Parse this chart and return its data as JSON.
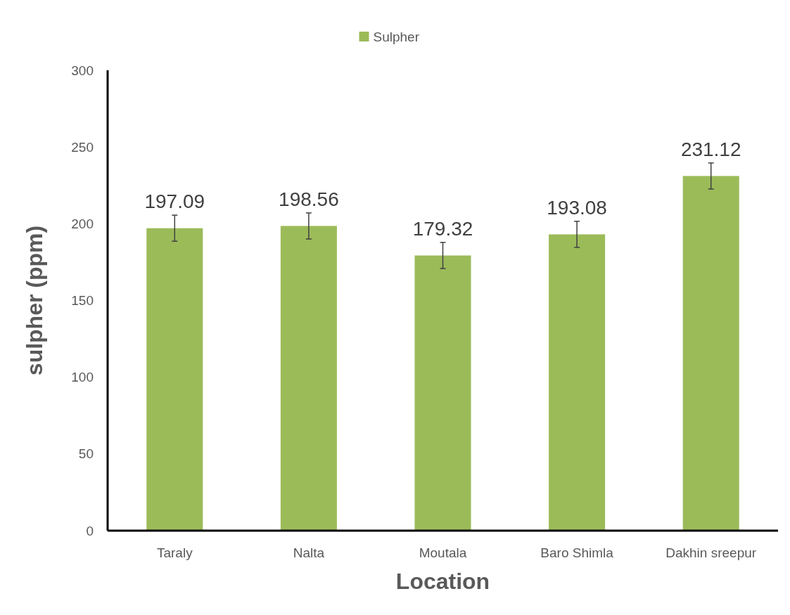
{
  "chart_data": {
    "type": "bar",
    "xlabel": "Location",
    "ylabel": "sulpher (ppm)",
    "categories": [
      "Taraly",
      "Nalta",
      "Moutala",
      "Baro Shimla",
      "Dakhin sreepur"
    ],
    "series": [
      {
        "name": "Sulpher",
        "color": "#9bbb59",
        "values": [
          197.09,
          198.56,
          179.32,
          193.08,
          231.12
        ],
        "errors": [
          8.5,
          8.5,
          8.5,
          8.5,
          8.5
        ]
      }
    ],
    "ylim": [
      0,
      300
    ],
    "yticks": [
      0,
      50,
      100,
      150,
      200,
      250,
      300
    ],
    "data_labels": true,
    "legend": "top",
    "grid": false
  }
}
